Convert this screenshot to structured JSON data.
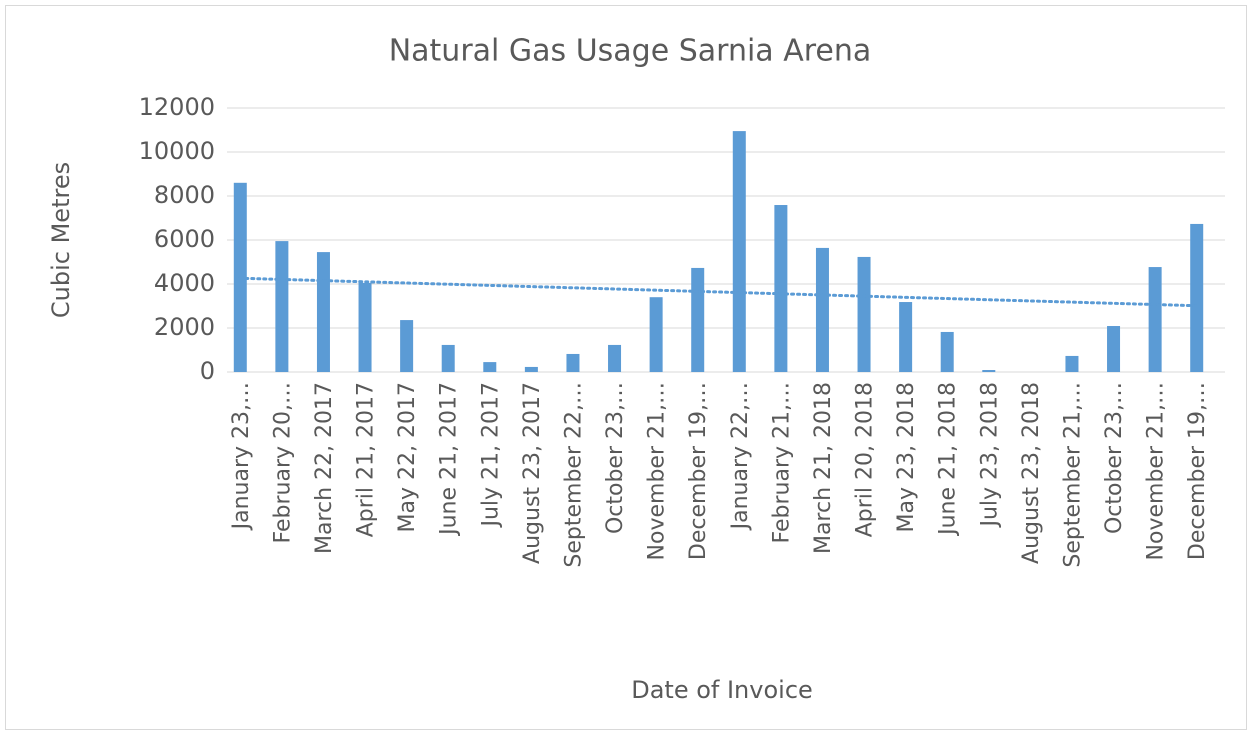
{
  "chart_data": {
    "type": "bar",
    "title": "Natural Gas Usage Sarnia Arena",
    "y_label": "Cubic Metres",
    "x_label": "Date of Invoice",
    "categories": [
      "January 23,…",
      "February 20,…",
      "March 22, 2017",
      "April 21, 2017",
      "May 22, 2017",
      "June 21, 2017",
      "July 21, 2017",
      "August 23, 2017",
      "September 22,…",
      "October 23,…",
      "November 21,…",
      "December 19,…",
      "January 22,…",
      "February 21,…",
      "March 21, 2018",
      "April 20, 2018",
      "May 23, 2018",
      "June 21, 2018",
      "July 23, 2018",
      "August 23, 2018",
      "September 21,…",
      "October 23,…",
      "November 21,…",
      "December 19,…"
    ],
    "values": [
      8600,
      5950,
      5450,
      4050,
      2360,
      1230,
      450,
      230,
      820,
      1230,
      3400,
      4730,
      10950,
      7590,
      5640,
      5230,
      3180,
      1820,
      90,
      0,
      730,
      2090,
      4770,
      6730
    ],
    "color": "#5b9bd5",
    "trendline": true,
    "ylim": [
      0,
      12000
    ],
    "yticks": [
      0,
      2000,
      4000,
      6000,
      8000,
      10000,
      12000
    ],
    "grid": true
  }
}
